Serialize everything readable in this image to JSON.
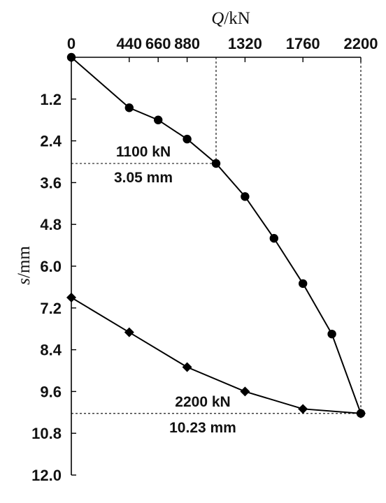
{
  "chart_data": {
    "type": "line",
    "title": "",
    "xaxis": {
      "label_symbol": "Q",
      "label_unit": "/kN",
      "position": "top",
      "range": [
        0,
        2200
      ],
      "ticks": [
        0,
        440,
        660,
        880,
        1320,
        1760,
        2200
      ],
      "tick_labels": [
        "0",
        "440",
        "660",
        "880",
        "1320",
        "1760",
        "2200"
      ]
    },
    "yaxis": {
      "label_symbol": "s",
      "label_unit": "/mm",
      "inverted": true,
      "range": [
        0,
        12.0
      ],
      "ticks": [
        1.2,
        2.4,
        3.6,
        4.8,
        6.0,
        7.2,
        8.4,
        9.6,
        10.8,
        12.0
      ],
      "tick_labels": [
        "1.2",
        "2.4",
        "3.6",
        "4.8",
        "6.0",
        "7.2",
        "8.4",
        "9.6",
        "10.8",
        "12.0"
      ]
    },
    "grid": false,
    "series": [
      {
        "marker": "circle",
        "color": "#000000",
        "x": [
          0,
          440,
          660,
          880,
          1100,
          1320,
          1540,
          1760,
          1980,
          2200
        ],
        "y": [
          0,
          1.45,
          1.8,
          2.35,
          3.05,
          4.0,
          5.2,
          6.5,
          7.95,
          10.23
        ]
      },
      {
        "marker": "diamond",
        "color": "#000000",
        "x": [
          2200,
          1760,
          1320,
          880,
          440,
          0
        ],
        "y": [
          10.23,
          10.1,
          9.6,
          8.9,
          7.9,
          6.9
        ]
      }
    ],
    "annotations": [
      {
        "load": "1100 kN",
        "settlement": "3.05 mm",
        "x": 1100,
        "y": 3.05
      },
      {
        "load": "2200 kN",
        "settlement": "10.23 mm",
        "x": 2200,
        "y": 10.23
      }
    ]
  }
}
